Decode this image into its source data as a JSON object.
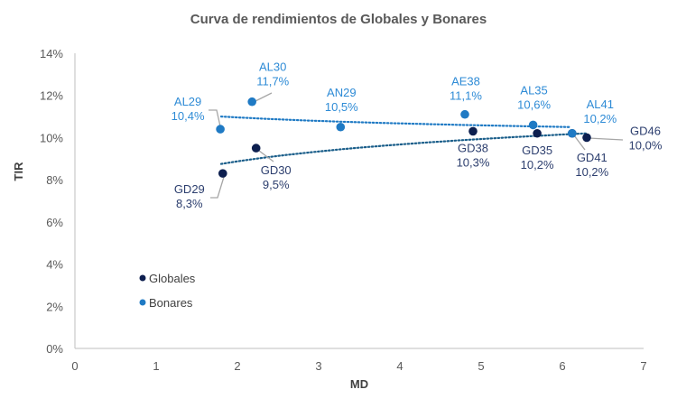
{
  "chart_data": {
    "type": "scatter",
    "title": "Curva de rendimientos de Globales y Bonares",
    "xlabel": "MD",
    "ylabel": "TIR",
    "xlim": [
      0,
      7
    ],
    "ylim": [
      0,
      14
    ],
    "xticks": [
      "0",
      "1",
      "2",
      "3",
      "4",
      "5",
      "6",
      "7"
    ],
    "yticks": [
      "0%",
      "2%",
      "4%",
      "6%",
      "8%",
      "10%",
      "12%",
      "14%"
    ],
    "grid": false,
    "legend_position": "bottom-left",
    "series": [
      {
        "name": "Globales",
        "color": "#0d1f4f",
        "label_color": "#2c3e6e",
        "points": [
          {
            "name": "GD29",
            "x": 1.82,
            "y": 8.3,
            "label": "8,3%"
          },
          {
            "name": "GD30",
            "x": 2.23,
            "y": 9.5,
            "label": "9,5%"
          },
          {
            "name": "GD38",
            "x": 4.9,
            "y": 10.3,
            "label": "10,3%"
          },
          {
            "name": "GD35",
            "x": 5.69,
            "y": 10.2,
            "label": "10,2%"
          },
          {
            "name": "GD41",
            "x": 6.12,
            "y": 10.2,
            "label": "10,2%"
          },
          {
            "name": "GD46",
            "x": 6.3,
            "y": 10.0,
            "label": "10,0%"
          }
        ],
        "trendline": {
          "type": "log",
          "from": [
            1.8,
            8.75
          ],
          "to": [
            6.3,
            10.2
          ]
        }
      },
      {
        "name": "Bonares",
        "color": "#1f7ac4",
        "label_color": "#2e8bd6",
        "points": [
          {
            "name": "AL29",
            "x": 1.79,
            "y": 10.4,
            "label": "10,4%"
          },
          {
            "name": "AL30",
            "x": 2.18,
            "y": 11.7,
            "label": "11,7%"
          },
          {
            "name": "AN29",
            "x": 3.27,
            "y": 10.5,
            "label": "10,5%"
          },
          {
            "name": "AE38",
            "x": 4.8,
            "y": 11.1,
            "label": "11,1%"
          },
          {
            "name": "AL35",
            "x": 5.64,
            "y": 10.6,
            "label": "10,6%"
          },
          {
            "name": "AL41",
            "x": 6.12,
            "y": 10.2,
            "label": "10,2%"
          }
        ],
        "trendline": {
          "type": "log",
          "from": [
            1.8,
            11.0
          ],
          "to": [
            6.1,
            10.5
          ]
        }
      }
    ]
  }
}
